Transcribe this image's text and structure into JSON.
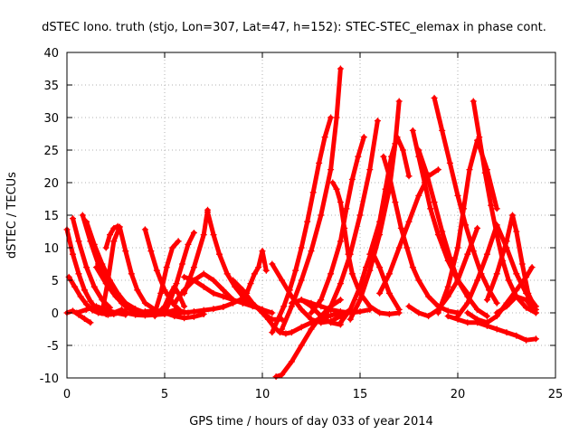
{
  "chart_data": {
    "type": "scatter",
    "title": "dSTEC Iono. truth (stjo, Lon=307, Lat=47, h=152): STEC-STEC_elemax in phase cont.",
    "xlabel": "GPS time / hours of day 033 of year 2014",
    "ylabel": "dSTEC  / TECUs",
    "xlim": [
      0,
      25
    ],
    "ylim": [
      -10,
      40
    ],
    "xticks": [
      0,
      5,
      10,
      15,
      20,
      25
    ],
    "yticks": [
      -10,
      -5,
      0,
      5,
      10,
      15,
      20,
      25,
      30,
      35,
      40
    ],
    "grid": true,
    "marker": "plus",
    "color": "#ff0000",
    "series": [
      {
        "x": [
          0.0,
          0.3,
          0.6,
          0.9,
          1.2,
          1.5,
          1.8,
          2.1,
          2.4,
          2.7,
          3.0
        ],
        "y": [
          12.8,
          9.0,
          6.0,
          3.5,
          1.8,
          0.6,
          0.0,
          -0.3,
          -0.2,
          0.0,
          0.4
        ]
      },
      {
        "x": [
          0.1,
          0.4,
          0.7,
          1.0,
          1.3,
          1.6,
          2.0,
          2.4,
          2.8
        ],
        "y": [
          5.5,
          4.0,
          2.5,
          1.3,
          0.4,
          0.0,
          -0.2,
          0.0,
          0.5
        ]
      },
      {
        "x": [
          0.0,
          0.3,
          0.6,
          0.9,
          1.2
        ],
        "y": [
          0.0,
          0.3,
          -0.3,
          -0.9,
          -1.5
        ]
      },
      {
        "x": [
          0.8,
          1.2,
          1.6,
          2.0,
          2.4,
          2.8,
          3.2,
          3.6,
          4.0
        ],
        "y": [
          15.0,
          11.0,
          7.5,
          5.0,
          3.0,
          1.5,
          0.6,
          0.0,
          -0.2
        ]
      },
      {
        "x": [
          1.0,
          1.4,
          1.8,
          2.2,
          2.6,
          3.0,
          3.5,
          4.0
        ],
        "y": [
          14.0,
          10.5,
          7.5,
          5.0,
          3.0,
          1.5,
          0.4,
          0.0
        ]
      },
      {
        "x": [
          0.3,
          0.6,
          1.0,
          1.4,
          1.8,
          2.2
        ],
        "y": [
          14.5,
          11.0,
          7.0,
          4.0,
          2.0,
          0.8
        ]
      },
      {
        "x": [
          0.5,
          1.0,
          1.5,
          2.0,
          2.5,
          3.0
        ],
        "y": [
          0.0,
          0.5,
          1.0,
          0.5,
          0.0,
          -0.3
        ]
      },
      {
        "x": [
          1.5,
          2.0,
          2.5,
          3.0,
          3.5
        ],
        "y": [
          7.0,
          4.5,
          2.5,
          1.0,
          0.3
        ]
      },
      {
        "x": [
          1.8,
          2.1,
          2.4,
          2.7,
          3.0,
          3.3,
          3.6,
          4.0,
          4.5,
          5.0
        ],
        "y": [
          0.0,
          5.0,
          11.0,
          13.2,
          9.5,
          6.0,
          3.5,
          1.5,
          0.5,
          0.0
        ]
      },
      {
        "x": [
          2.0,
          2.2,
          2.4,
          2.6
        ],
        "y": [
          10.0,
          12.0,
          13.0,
          13.3
        ]
      },
      {
        "x": [
          2.5,
          3.0,
          3.5,
          4.0,
          4.5,
          5.0,
          5.5
        ],
        "y": [
          3.0,
          1.5,
          0.6,
          0.0,
          -0.2,
          0.0,
          0.4
        ]
      },
      {
        "x": [
          4.0,
          4.3,
          4.6,
          5.0,
          5.4,
          5.8,
          6.2
        ],
        "y": [
          12.8,
          9.5,
          6.5,
          3.5,
          1.5,
          0.3,
          0.0
        ]
      },
      {
        "x": [
          3.5,
          4.0,
          4.5,
          5.0,
          5.5,
          6.0,
          6.5,
          7.0
        ],
        "y": [
          0.0,
          0.2,
          0.3,
          0.0,
          -0.5,
          -0.8,
          -0.6,
          -0.2
        ]
      },
      {
        "x": [
          3.0,
          3.5,
          4.0,
          4.5,
          5.0,
          5.5,
          6.0,
          6.5,
          7.0,
          7.5,
          8.0,
          8.5,
          9.0
        ],
        "y": [
          0.0,
          -0.3,
          -0.4,
          -0.3,
          -0.2,
          0.0,
          0.0,
          0.2,
          0.4,
          0.6,
          0.9,
          1.5,
          2.2
        ]
      },
      {
        "x": [
          4.5,
          4.8,
          5.1,
          5.4,
          5.7
        ],
        "y": [
          0.0,
          3.0,
          7.0,
          10.0,
          11.0
        ]
      },
      {
        "x": [
          4.5,
          5.0,
          5.3,
          5.5,
          5.7,
          6.0
        ],
        "y": [
          -0.5,
          1.0,
          3.0,
          4.0,
          3.0,
          1.0
        ]
      },
      {
        "x": [
          5.0,
          5.3,
          5.6,
          5.9,
          6.2,
          6.5
        ],
        "y": [
          0.0,
          2.0,
          4.5,
          7.5,
          10.5,
          12.3
        ]
      },
      {
        "x": [
          5.5,
          6.0,
          6.5,
          7.0,
          7.5,
          8.0,
          8.5
        ],
        "y": [
          1.5,
          3.5,
          5.0,
          6.0,
          5.0,
          3.5,
          2.0
        ]
      },
      {
        "x": [
          6.0,
          6.5,
          7.0,
          7.2
        ],
        "y": [
          3.0,
          7.0,
          12.0,
          15.8
        ]
      },
      {
        "x": [
          7.2,
          7.5,
          7.8,
          8.2,
          8.6,
          9.0,
          9.5,
          10.0,
          10.5
        ],
        "y": [
          15.5,
          12.0,
          9.0,
          6.0,
          4.0,
          2.5,
          1.2,
          0.5,
          0.0
        ]
      },
      {
        "x": [
          6.0,
          6.5,
          7.0,
          7.5,
          8.0,
          8.5,
          9.0,
          9.5,
          10.0
        ],
        "y": [
          5.5,
          5.0,
          4.0,
          3.0,
          2.5,
          2.0,
          1.5,
          1.0,
          0.5
        ]
      },
      {
        "x": [
          8.5,
          9.0,
          9.5,
          10.0,
          10.5,
          11.0
        ],
        "y": [
          5.0,
          3.5,
          1.5,
          0.0,
          -1.0,
          -1.0
        ]
      },
      {
        "x": [
          9.0,
          9.2,
          9.4,
          9.6,
          9.8,
          10.0,
          10.2
        ],
        "y": [
          1.5,
          3.0,
          4.5,
          6.0,
          7.0,
          9.5,
          6.5
        ]
      },
      {
        "x": [
          10.0,
          10.3,
          10.6,
          10.9,
          11.2,
          11.5,
          12.0,
          12.5,
          13.0,
          13.5,
          14.0
        ],
        "y": [
          0.0,
          -1.0,
          -2.2,
          -3.0,
          -3.2,
          -3.0,
          -2.2,
          -1.5,
          -0.8,
          -0.4,
          0.0
        ]
      },
      {
        "x": [
          10.5,
          10.8,
          11.1,
          11.4,
          11.7,
          12.0,
          12.3,
          12.6,
          12.9,
          13.2,
          13.5
        ],
        "y": [
          -3.0,
          -1.0,
          1.0,
          3.5,
          6.5,
          10.0,
          14.0,
          18.5,
          23.0,
          27.0,
          30.0
        ]
      },
      {
        "x": [
          10.5,
          11.0,
          11.5,
          12.0,
          12.5,
          13.0,
          13.5,
          14.0,
          14.5
        ],
        "y": [
          7.5,
          5.0,
          2.5,
          0.5,
          -1.0,
          -1.5,
          -1.3,
          -0.5,
          0.5
        ]
      },
      {
        "x": [
          10.7,
          11.0,
          11.5,
          12.0,
          12.5,
          13.0,
          13.5,
          14.0
        ],
        "y": [
          -9.8,
          -9.5,
          -7.5,
          -5.0,
          -2.5,
          -0.5,
          1.0,
          2.0
        ]
      },
      {
        "x": [
          11.0,
          11.5,
          12.0,
          12.5,
          13.0,
          13.5,
          13.8,
          14.0
        ],
        "y": [
          -2.5,
          1.0,
          5.0,
          9.5,
          15.0,
          22.0,
          30.0,
          37.5
        ]
      },
      {
        "x": [
          11.5,
          12.0,
          12.5,
          13.0,
          13.5,
          14.0
        ],
        "y": [
          1.5,
          2.0,
          1.0,
          -0.5,
          -1.5,
          -1.8
        ]
      },
      {
        "x": [
          12.0,
          12.5,
          13.0,
          13.5,
          14.0,
          14.5,
          15.0,
          15.5
        ],
        "y": [
          2.0,
          1.5,
          1.0,
          0.5,
          0.2,
          0.0,
          0.2,
          0.5
        ]
      },
      {
        "x": [
          12.5,
          13.0,
          13.5,
          14.0,
          14.3,
          14.6,
          14.9,
          15.2
        ],
        "y": [
          0.0,
          2.0,
          6.0,
          11.0,
          16.0,
          20.5,
          24.0,
          27.0
        ]
      },
      {
        "x": [
          13.0,
          13.5,
          14.0,
          14.5,
          15.0,
          15.5,
          15.9
        ],
        "y": [
          -1.5,
          1.0,
          4.5,
          9.0,
          15.0,
          22.0,
          29.5
        ]
      },
      {
        "x": [
          13.6,
          13.8,
          14.0,
          14.2,
          14.4,
          14.6,
          15.0,
          15.5,
          16.0,
          16.5,
          17.0
        ],
        "y": [
          20.0,
          19.0,
          17.0,
          13.0,
          9.0,
          6.0,
          3.0,
          1.0,
          0.0,
          -0.2,
          0.0
        ]
      },
      {
        "x": [
          14.0,
          14.5,
          15.0,
          15.3,
          15.6,
          16.0,
          16.5,
          17.0
        ],
        "y": [
          -1.5,
          0.5,
          4.0,
          7.0,
          9.5,
          7.0,
          3.0,
          0.5
        ]
      },
      {
        "x": [
          14.5,
          15.0,
          15.5,
          16.0,
          16.5,
          16.8,
          17.0
        ],
        "y": [
          -1.0,
          2.0,
          6.5,
          12.0,
          19.0,
          26.0,
          32.5
        ]
      },
      {
        "x": [
          15.5,
          16.0,
          16.3,
          16.6,
          16.9,
          17.2,
          17.5
        ],
        "y": [
          9.0,
          14.0,
          19.0,
          24.0,
          27.0,
          25.0,
          21.0
        ]
      },
      {
        "x": [
          16.2,
          16.5,
          16.8,
          17.1,
          17.4,
          17.7,
          18.0,
          18.5,
          19.0,
          19.5,
          20.0
        ],
        "y": [
          24.0,
          21.0,
          17.0,
          13.0,
          10.0,
          7.0,
          5.0,
          2.5,
          1.0,
          0.3,
          0.0
        ]
      },
      {
        "x": [
          16.0,
          16.5,
          17.0,
          17.5,
          18.0,
          18.5,
          19.0
        ],
        "y": [
          3.0,
          6.0,
          10.0,
          14.0,
          18.0,
          21.0,
          22.0
        ]
      },
      {
        "x": [
          17.7,
          18.0,
          18.3,
          18.6,
          19.0,
          19.5,
          20.0,
          20.5
        ],
        "y": [
          28.0,
          24.0,
          20.0,
          16.0,
          12.0,
          8.0,
          5.0,
          3.0
        ]
      },
      {
        "x": [
          17.5,
          18.0,
          18.5,
          19.0,
          19.5,
          20.0,
          20.5,
          21.0
        ],
        "y": [
          1.0,
          0.0,
          -0.5,
          0.5,
          2.5,
          5.0,
          9.0,
          13.0
        ]
      },
      {
        "x": [
          18.0,
          18.4,
          18.8,
          19.2,
          19.6,
          20.0,
          20.5,
          21.0,
          21.5
        ],
        "y": [
          25.0,
          21.5,
          17.0,
          12.5,
          8.5,
          5.0,
          2.5,
          0.5,
          -0.5
        ]
      },
      {
        "x": [
          18.8,
          19.2,
          19.6,
          20.0,
          20.4,
          20.8,
          21.2,
          21.6,
          22.0
        ],
        "y": [
          33.0,
          28.0,
          23.0,
          18.0,
          13.5,
          9.5,
          6.0,
          3.5,
          1.5
        ]
      },
      {
        "x": [
          19.0,
          19.5,
          20.0,
          20.3,
          20.6,
          21.0,
          21.5,
          22.0
        ],
        "y": [
          0.0,
          4.0,
          10.0,
          16.0,
          22.0,
          26.5,
          22.0,
          16.0
        ]
      },
      {
        "x": [
          19.5,
          20.0,
          20.5,
          21.0,
          21.5,
          22.0,
          22.5,
          23.0,
          23.5,
          24.0
        ],
        "y": [
          -0.5,
          -1.0,
          -1.5,
          -1.5,
          -2.0,
          -2.5,
          -3.0,
          -3.5,
          -4.2,
          -4.0
        ]
      },
      {
        "x": [
          20.8,
          21.1,
          21.4,
          21.7,
          22.0,
          22.3,
          22.6,
          23.0,
          23.5,
          24.0
        ],
        "y": [
          32.5,
          27.0,
          21.5,
          16.5,
          12.0,
          8.0,
          5.0,
          2.5,
          0.8,
          0.0
        ]
      },
      {
        "x": [
          20.0,
          20.5,
          21.0,
          21.5,
          22.0,
          22.5,
          23.0,
          23.5,
          24.0
        ],
        "y": [
          -0.5,
          1.5,
          5.0,
          9.0,
          13.5,
          10.0,
          6.0,
          3.0,
          1.0
        ]
      },
      {
        "x": [
          20.5,
          21.0,
          21.5,
          22.0,
          22.5,
          23.0,
          23.5,
          23.8
        ],
        "y": [
          0.0,
          -1.0,
          -1.5,
          -0.5,
          1.5,
          3.5,
          5.5,
          7.0
        ]
      },
      {
        "x": [
          21.5,
          22.0,
          22.5,
          22.8,
          23.0,
          23.3,
          23.6,
          24.0
        ],
        "y": [
          2.0,
          6.0,
          11.0,
          15.0,
          12.5,
          7.5,
          3.0,
          0.5
        ]
      },
      {
        "x": [
          22.0,
          22.5,
          23.0,
          23.5,
          24.0
        ],
        "y": [
          0.0,
          1.0,
          2.5,
          2.0,
          0.0
        ]
      }
    ]
  }
}
